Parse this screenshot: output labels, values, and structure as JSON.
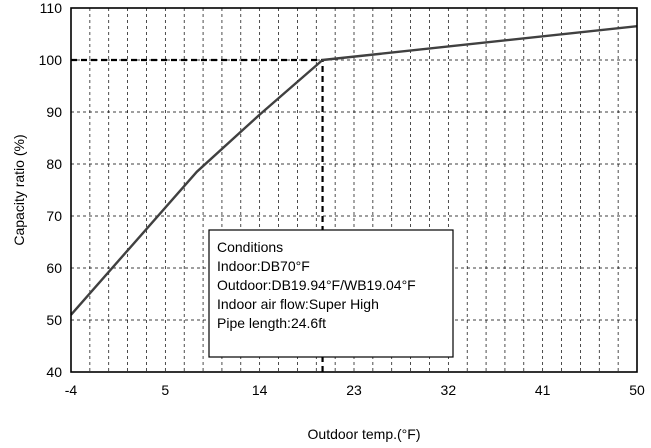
{
  "chart_data": {
    "type": "line",
    "title": "",
    "xlabel": "Outdoor temp.(°F)",
    "ylabel": "Capacity ratio (%)",
    "xlim": [
      -4,
      50
    ],
    "ylim": [
      40,
      110
    ],
    "x_ticks": [
      -4,
      5,
      14,
      23,
      32,
      41,
      50
    ],
    "y_ticks": [
      40,
      50,
      60,
      70,
      80,
      90,
      100,
      110
    ],
    "grid": "dashed, every 1.8°F and 10%",
    "legend": "none",
    "series": [
      {
        "x": [
          -4,
          8,
          14,
          20,
          50
        ],
        "y": [
          51,
          78.5,
          89.5,
          100,
          106.5
        ]
      }
    ],
    "reference_lines": [
      {
        "style": "dashed",
        "from": [
          -4,
          100
        ],
        "to": [
          20,
          100
        ]
      },
      {
        "style": "dashed",
        "from": [
          20,
          40
        ],
        "to": [
          20,
          100
        ]
      }
    ],
    "annotation_box": {
      "lines": [
        "Conditions",
        "Indoor:DB70°F",
        "Outdoor:DB19.94°F/WB19.04°F",
        "Indoor air flow:Super High",
        "Pipe length:24.6ft"
      ]
    },
    "colors": {
      "line": "#404040",
      "grid": "#000000",
      "reference": "#000000"
    }
  }
}
